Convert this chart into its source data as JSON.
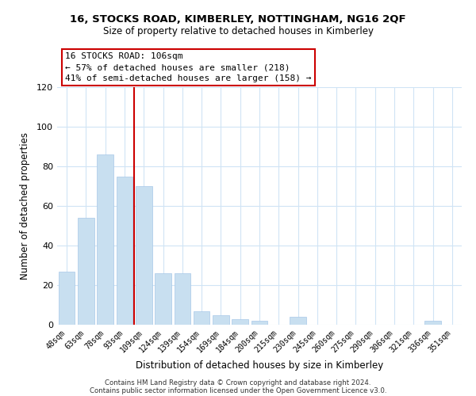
{
  "title1": "16, STOCKS ROAD, KIMBERLEY, NOTTINGHAM, NG16 2QF",
  "title2": "Size of property relative to detached houses in Kimberley",
  "xlabel": "Distribution of detached houses by size in Kimberley",
  "ylabel": "Number of detached properties",
  "categories": [
    "48sqm",
    "63sqm",
    "78sqm",
    "93sqm",
    "109sqm",
    "124sqm",
    "139sqm",
    "154sqm",
    "169sqm",
    "184sqm",
    "200sqm",
    "215sqm",
    "230sqm",
    "245sqm",
    "260sqm",
    "275sqm",
    "290sqm",
    "306sqm",
    "321sqm",
    "336sqm",
    "351sqm"
  ],
  "values": [
    27,
    54,
    86,
    75,
    70,
    26,
    26,
    7,
    5,
    3,
    2,
    0,
    4,
    0,
    0,
    0,
    0,
    0,
    0,
    2,
    0
  ],
  "bar_color": "#c8dff0",
  "bar_edge_color": "#a8c8e8",
  "vline_x_index": 4,
  "vline_color": "#cc0000",
  "annotation_line1": "16 STOCKS ROAD: 106sqm",
  "annotation_line2": "← 57% of detached houses are smaller (218)",
  "annotation_line3": "41% of semi-detached houses are larger (158) →",
  "annotation_box_edge": "#cc0000",
  "ylim": [
    0,
    120
  ],
  "yticks": [
    0,
    20,
    40,
    60,
    80,
    100,
    120
  ],
  "footer1": "Contains HM Land Registry data © Crown copyright and database right 2024.",
  "footer2": "Contains public sector information licensed under the Open Government Licence v3.0.",
  "bg_color": "#ffffff",
  "grid_color": "#d0e4f5"
}
